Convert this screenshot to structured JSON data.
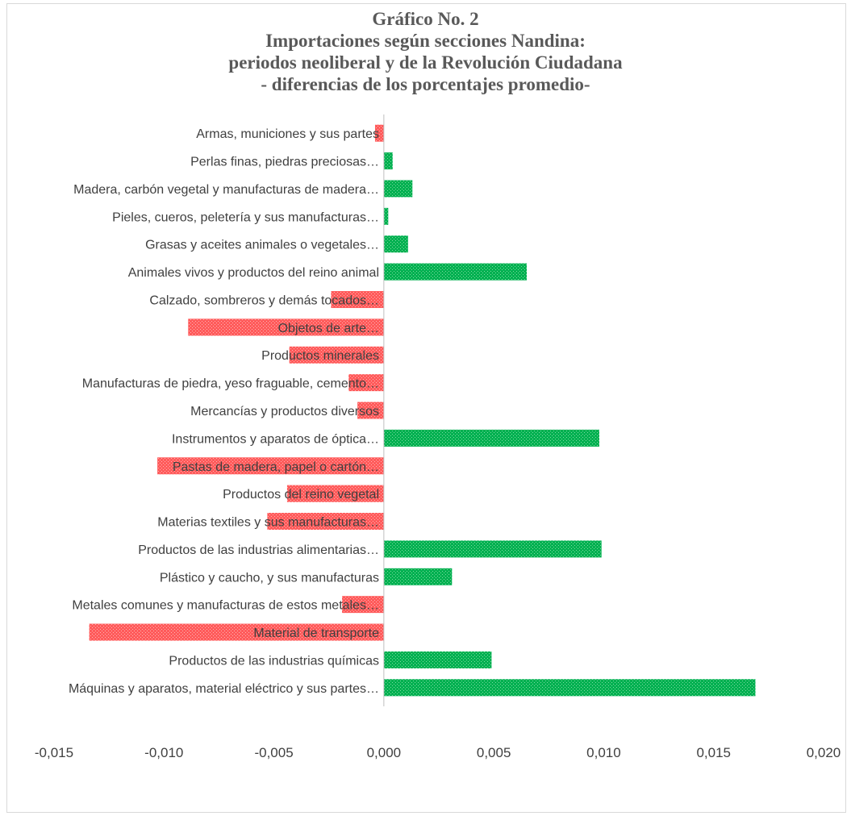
{
  "chart_data": {
    "type": "bar",
    "orientation": "horizontal",
    "title": "Gráfico No. 2",
    "subtitle": [
      "Importaciones según secciones Nandina:",
      "periodos neoliberal y de la Revolución Ciudadana",
      "- diferencias de los porcentajes promedio-"
    ],
    "categories": [
      "Armas, municiones y sus partes",
      "Perlas finas, piedras preciosas…",
      "Madera, carbón vegetal y manufacturas de madera…",
      "Pieles, cueros, peletería y sus manufacturas…",
      "Grasas y aceites animales o vegetales…",
      "Animales vivos y productos del reino animal",
      "Calzado, sombreros y demás tocados…",
      "Objetos de arte…",
      "Productos minerales",
      "Manufacturas de piedra, yeso fraguable, cemento…",
      "Mercancías y productos diversos",
      "Instrumentos y aparatos de óptica…",
      "Pastas de madera, papel o cartón…",
      "Productos del reino vegetal",
      "Materias textiles y sus manufacturas…",
      "Productos de las industrias alimentarias…",
      "Plástico y caucho, y sus manufacturas",
      "Metales comunes y manufacturas de estos metales…",
      "Material de transporte",
      "Productos de las industrias químicas",
      "Máquinas y aparatos, material eléctrico y sus partes…"
    ],
    "values": [
      -0.0004,
      0.0004,
      0.0013,
      0.0002,
      0.0011,
      0.0065,
      -0.0024,
      -0.0089,
      -0.0043,
      -0.0016,
      -0.0012,
      0.0098,
      -0.0103,
      -0.0044,
      -0.0053,
      0.0099,
      0.0031,
      -0.0019,
      -0.0134,
      0.0049,
      0.0169
    ],
    "xlim": [
      -0.015,
      0.02
    ],
    "xticks": [
      "-0,015",
      "-0,010",
      "-0,005",
      "0,000",
      "0,005",
      "0,010",
      "0,015",
      "0,020"
    ],
    "colors": {
      "positive": "#00b050",
      "negative": "#ff5b5b"
    },
    "grid": false
  }
}
